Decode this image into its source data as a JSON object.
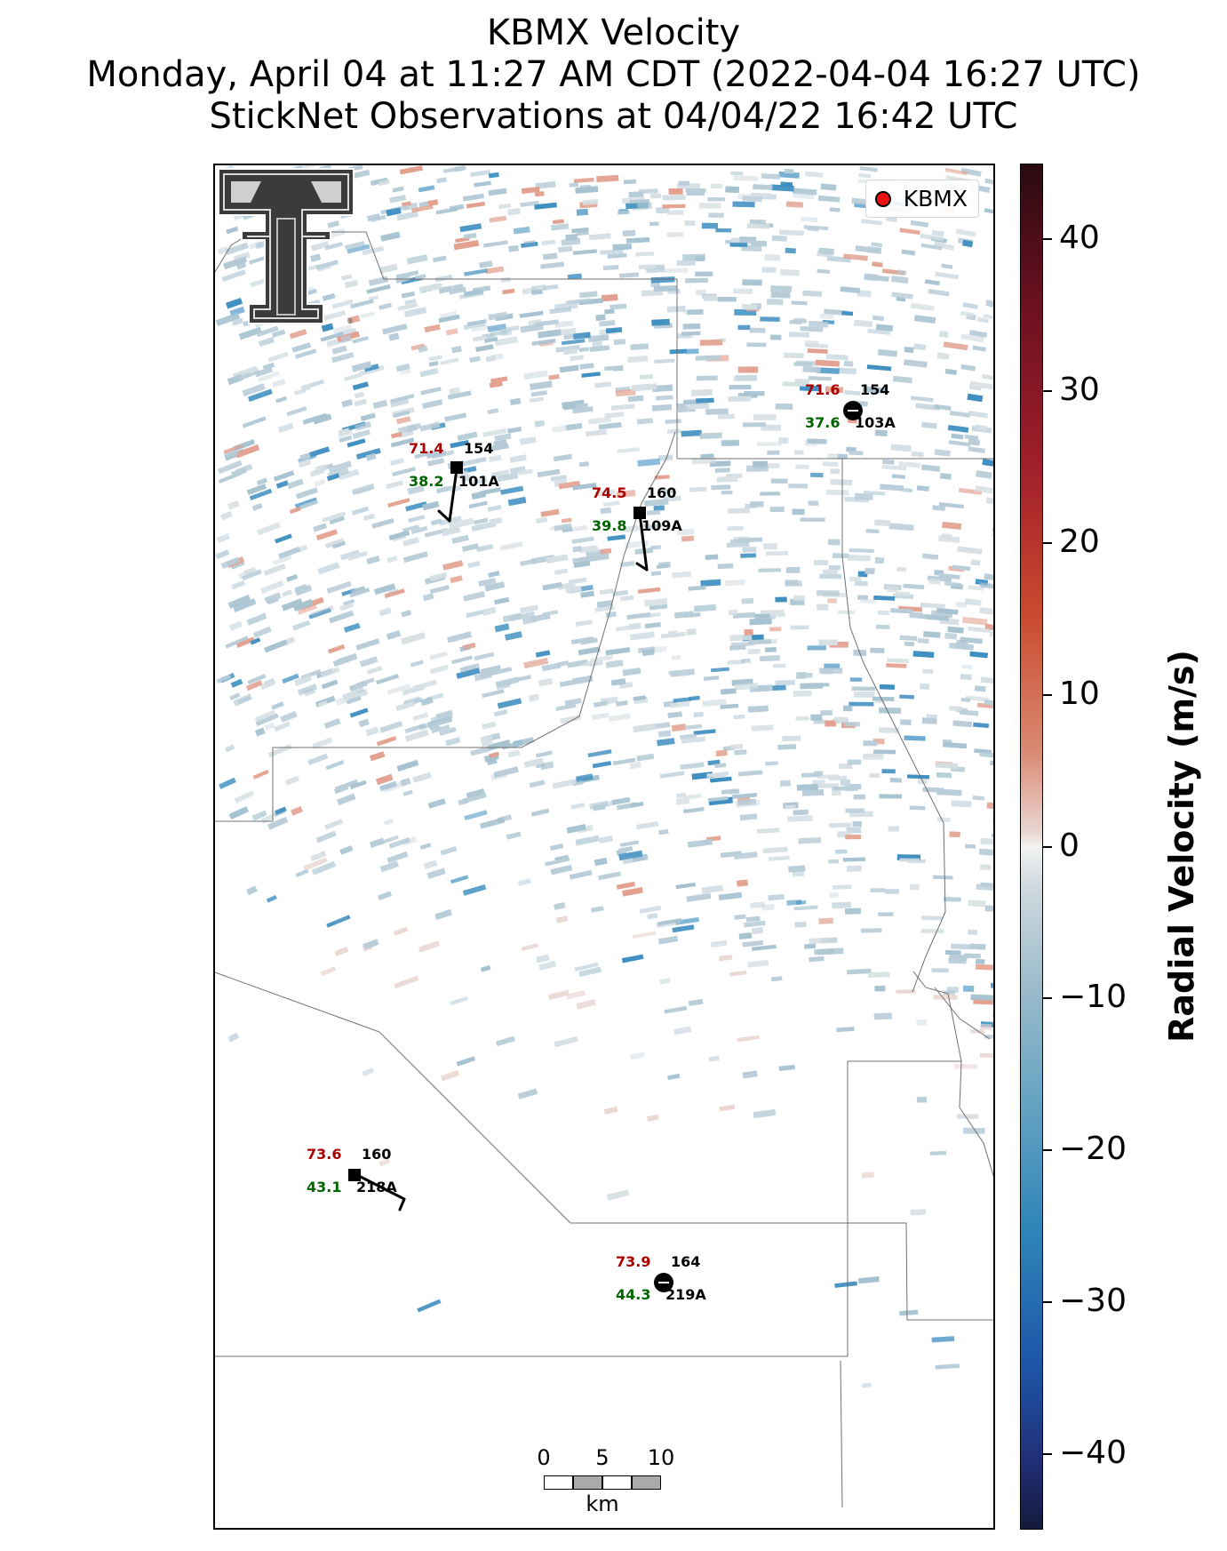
{
  "title": {
    "line1": "KBMX Velocity",
    "line2": "Monday, April 04 at 11:27 AM CDT (2022-04-04 16:27 UTC)",
    "line3": "StickNet Observations at 04/04/22 16:42 UTC"
  },
  "legend": {
    "label": "KBMX",
    "marker_color": "#ee1111"
  },
  "logo": {
    "name": "texas-tech-double-t-logo"
  },
  "stations": [
    {
      "id": "101A",
      "temp": "71.4",
      "dir": "154",
      "dew": "38.2"
    },
    {
      "id": "109A",
      "temp": "74.5",
      "dir": "160",
      "dew": "39.8"
    },
    {
      "id": "103A",
      "temp": "71.6",
      "dir": "154",
      "dew": "37.6"
    },
    {
      "id": "218A",
      "temp": "73.6",
      "dir": "160",
      "dew": "43.1"
    },
    {
      "id": "219A",
      "temp": "73.9",
      "dir": "164",
      "dew": "44.3"
    }
  ],
  "scalebar": {
    "ticks": [
      "0",
      "5",
      "10"
    ],
    "unit": "km"
  },
  "colorbar": {
    "title": "Radial Velocity (m/s)",
    "min": -45,
    "max": 45,
    "ticks": [
      "40",
      "30",
      "20",
      "10",
      "0",
      "−10",
      "−20",
      "−30",
      "−40"
    ]
  },
  "colors": {
    "temp_text": "#aa0000",
    "dew_text": "#006400",
    "id_text": "#000000",
    "inbound_low": "#b9cdd8",
    "inbound_high": "#3f8fc1",
    "outbound": "#e3a08f"
  }
}
